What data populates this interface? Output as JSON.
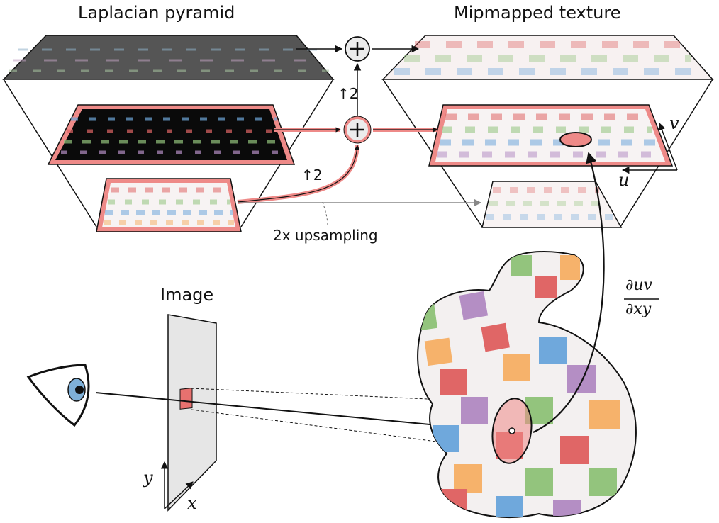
{
  "titles": {
    "laplacian": "Laplacian pyramid",
    "mipmap": "Mipmapped texture",
    "image": "Image"
  },
  "annotations": {
    "upsampling": "2x upsampling",
    "up2_top": "↑2",
    "up2_bottom": "↑2",
    "du_numerator": "∂uv",
    "du_denominator": "∂xy",
    "axis_u": "u",
    "axis_v": "v",
    "axis_x": "x",
    "axis_y": "y"
  },
  "colors": {
    "highlight": "#e8716f",
    "checker_palette": [
      "#e06666",
      "#93c47d",
      "#6fa8dc",
      "#f6b26b",
      "#b48ec4",
      "#f2f2f2"
    ]
  }
}
